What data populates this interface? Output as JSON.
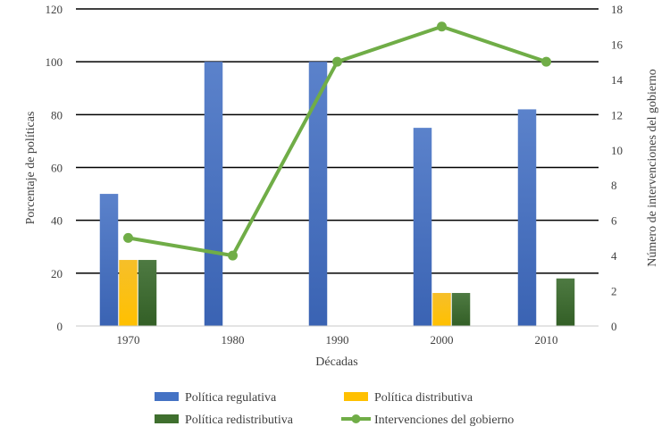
{
  "chart_data": {
    "type": "bar",
    "title": "",
    "xlabel": "Décadas",
    "ylabel": "Porcentaje de políticas",
    "y2label": "Número de intervenciones del gobierno",
    "categories": [
      "1970",
      "1980",
      "1990",
      "2000",
      "2010"
    ],
    "ylim": [
      0,
      120
    ],
    "y_ticks": [
      0,
      20,
      40,
      60,
      80,
      100,
      120
    ],
    "y2lim": [
      0,
      18
    ],
    "y2_ticks": [
      0,
      2,
      4,
      6,
      8,
      10,
      12,
      14,
      16,
      18
    ],
    "grid": true,
    "legend_position": "bottom",
    "series": [
      {
        "name": "Política regulativa",
        "type": "bar",
        "axis": "left",
        "color": "#4472C4",
        "values": [
          50,
          100,
          100,
          75,
          82
        ]
      },
      {
        "name": "Política distributiva",
        "type": "bar",
        "axis": "left",
        "color": "#FFC000",
        "values": [
          25,
          0,
          0,
          12.5,
          0
        ]
      },
      {
        "name": "Política redistributiva",
        "type": "bar",
        "axis": "left",
        "color": "#3F6F2E",
        "values": [
          25,
          0,
          0,
          12.5,
          18
        ]
      },
      {
        "name": "Intervenciones del gobierno",
        "type": "line",
        "axis": "right",
        "color": "#70AD47",
        "values": [
          5,
          4,
          15,
          17,
          15
        ]
      }
    ]
  }
}
